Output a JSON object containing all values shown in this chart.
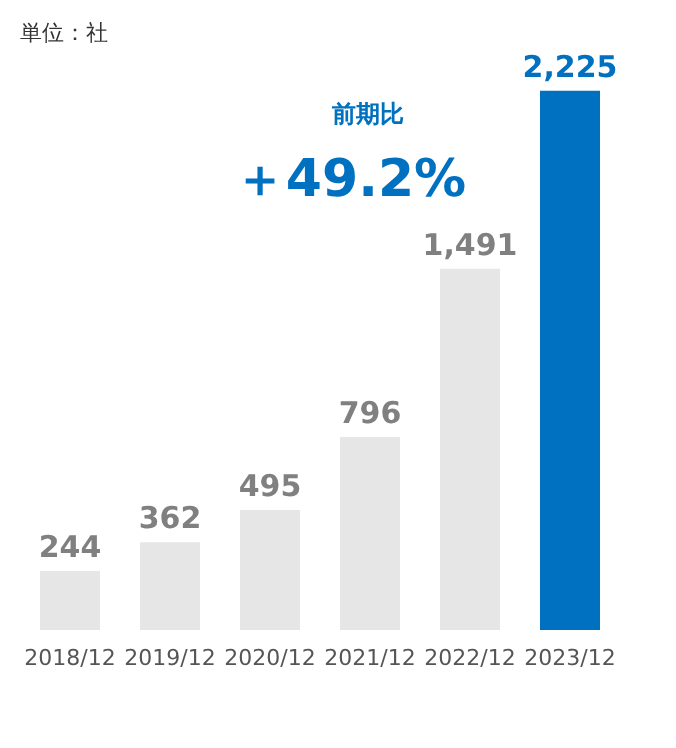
{
  "chart_data": {
    "type": "bar",
    "categories": [
      "2018/12",
      "2019/12",
      "2020/12",
      "2021/12",
      "2022/12",
      "2023/12"
    ],
    "values": [
      244,
      362,
      495,
      796,
      1491,
      2225
    ],
    "value_labels": [
      "244",
      "362",
      "495",
      "796",
      "1,491",
      "2,225"
    ],
    "colors": [
      "#e6e6e6",
      "#e6e6e6",
      "#e6e6e6",
      "#e6e6e6",
      "#e6e6e6",
      "#0070c0"
    ],
    "annotations": [
      "単位：社",
      "前期比",
      "＋49.2%"
    ],
    "grid": false
  }
}
